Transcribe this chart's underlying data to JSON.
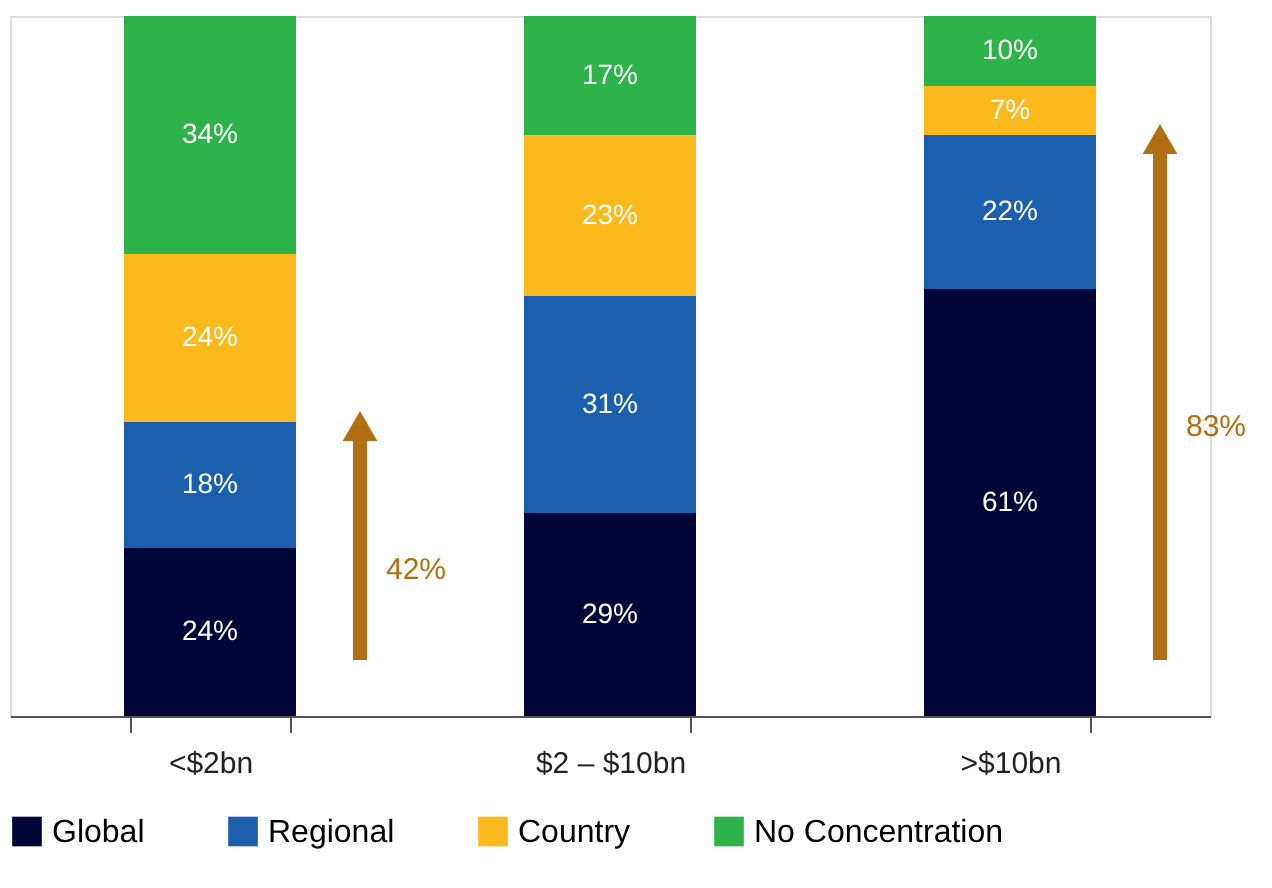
{
  "chart_data": {
    "type": "bar",
    "stacked": true,
    "legend": "bottom",
    "categories": [
      "<$2bn",
      "$2 – $10bn",
      ">$10bn"
    ],
    "series": [
      {
        "name": "Global",
        "color": "#020538",
        "values": [
          24,
          29,
          61
        ],
        "value_labels": [
          "24%",
          "29%",
          "61%"
        ]
      },
      {
        "name": "Regional",
        "color": "#1c5fae",
        "values": [
          18,
          31,
          22
        ],
        "value_labels": [
          "18%",
          "31%",
          "22%"
        ]
      },
      {
        "name": "Country",
        "color": "#fbb91c",
        "values": [
          24,
          23,
          7
        ],
        "value_labels": [
          "24%",
          "23%",
          "7%"
        ]
      },
      {
        "name": "No Concentration",
        "color": "#2db34a",
        "values": [
          34,
          17,
          10
        ],
        "value_labels": [
          "34%",
          "17%",
          "10%"
        ]
      }
    ],
    "annotations": [
      "42%",
      "83%"
    ]
  }
}
